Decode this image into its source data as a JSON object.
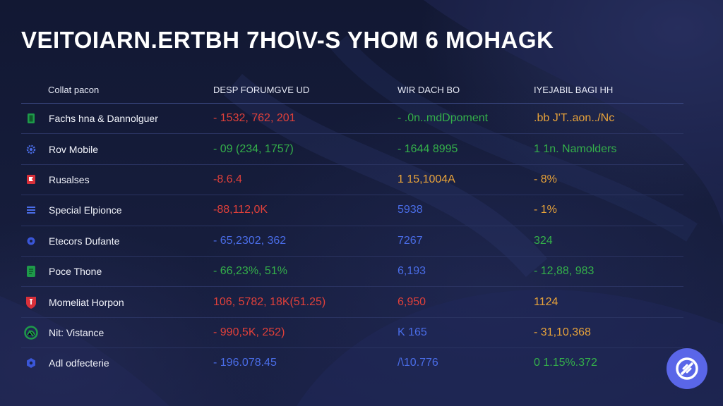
{
  "title": "VEITOIARN.ERTBH 7HO\\V-S YHOM 6 MOHAGK",
  "columns": [
    "Collat pacon",
    "DESP FORUMGVE UD",
    "WIR DACH BO",
    "IYEJABIL BAGI HH"
  ],
  "rows": [
    {
      "name": "Fachs hna & Dannolguer",
      "icon": "green-square-icon",
      "v1": "- 1532, 762, 201",
      "v1_color": "#e0403a",
      "v2": "- .0n..mdDpoment",
      "v2_color": "#34b04a",
      "v3": ".bb J'T..aon../Nc",
      "v3_color": "#e8a33a"
    },
    {
      "name": "Rov Mobile",
      "icon": "gear-icon",
      "v1": "- 09 (234, 1757)",
      "v1_color": "#34b04a",
      "v2": "- 1644 8995",
      "v2_color": "#34b04a",
      "v3": "1 1n. Namolders",
      "v3_color": "#34b04a"
    },
    {
      "name": "Rusalses",
      "icon": "red-flag-icon",
      "v1": "-8.6.4",
      "v1_color": "#e0403a",
      "v2": "1 15,1004A",
      "v2_color": "#e8a33a",
      "v3": "- 8%",
      "v3_color": "#e8a33a"
    },
    {
      "name": "Special Elpionce",
      "icon": "list-icon",
      "v1": "-88,112,0K",
      "v1_color": "#e0403a",
      "v2": "5938",
      "v2_color": "#4a6de8",
      "v3": "- 1%",
      "v3_color": "#e8a33a"
    },
    {
      "name": "Etecors Dufante",
      "icon": "blue-dot-icon",
      "v1": "- 65,2302, 362",
      "v1_color": "#4a6de8",
      "v2": "7267",
      "v2_color": "#4a6de8",
      "v3": "324",
      "v3_color": "#34b04a"
    },
    {
      "name": "Poce Thone",
      "icon": "green-ticket-icon",
      "v1": "- 66,23%, 51%",
      "v1_color": "#34b04a",
      "v2": "6,193",
      "v2_color": "#4a6de8",
      "v3": "- 12,88, 983",
      "v3_color": "#34b04a"
    },
    {
      "name": "Momeliat Horpon",
      "icon": "red-shield-icon",
      "v1": "106, 5782, 18K(51.25)",
      "v1_color": "#e0403a",
      "v2": "6,950",
      "v2_color": "#e0403a",
      "v3": "1124",
      "v3_color": "#e8a33a"
    },
    {
      "name": "Nit: Vistance",
      "icon": "green-circle-icon",
      "v1": "- 990,5K, 252)",
      "v1_color": "#e0403a",
      "v2": "K 165",
      "v2_color": "#4a6de8",
      "v3": "- 31,10,368",
      "v3_color": "#e8a33a"
    },
    {
      "name": "Adl odfecterie",
      "icon": "hexagon-icon",
      "v1": "- 196.078.45",
      "v1_color": "#4a6de8",
      "v2": "/\\10.776",
      "v2_color": "#4a6de8",
      "v3": "0 1.15%.372",
      "v3_color": "#34b04a"
    }
  ],
  "fab": {
    "icon": "coin-icon"
  }
}
